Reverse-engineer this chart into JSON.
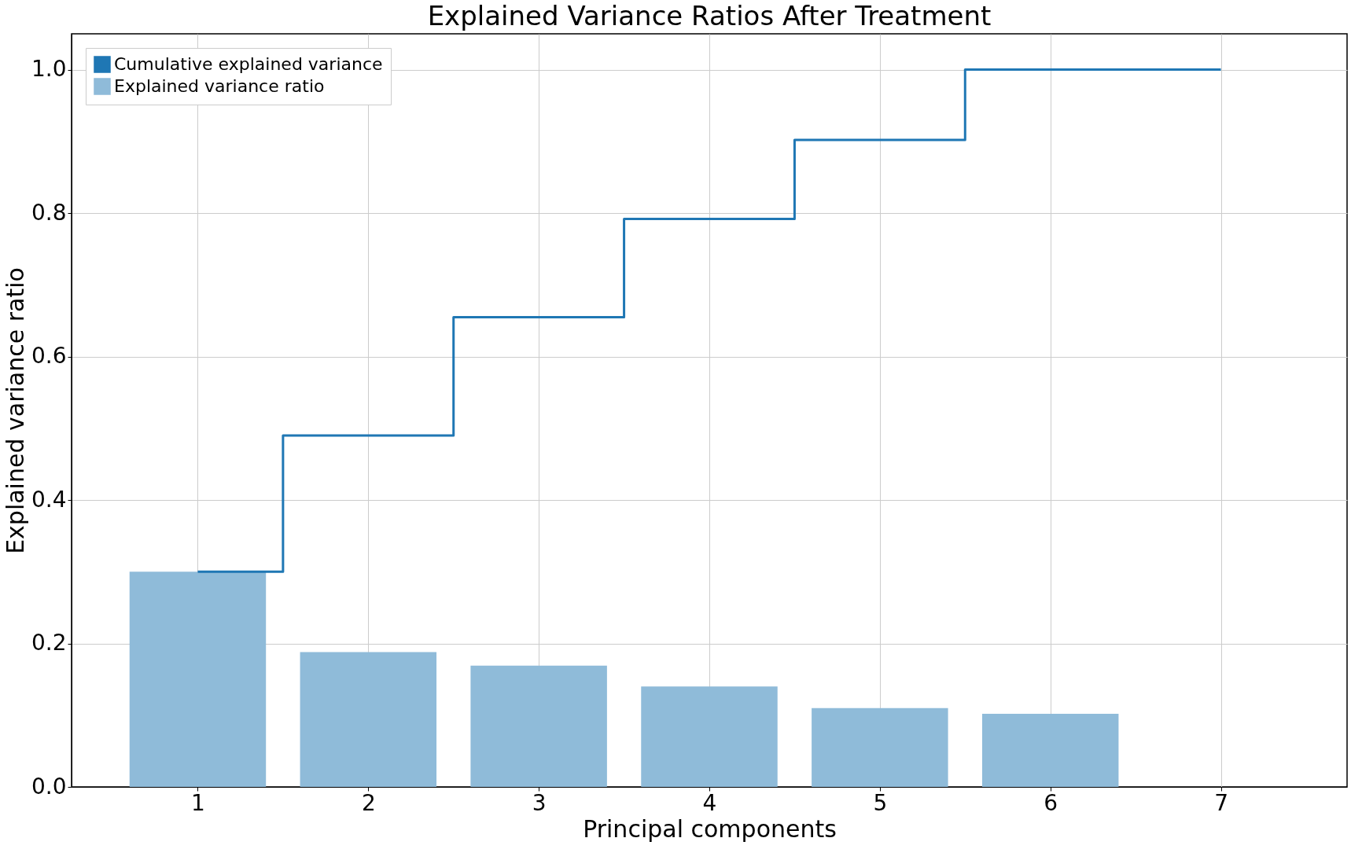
{
  "chart_data": {
    "type": "bar",
    "title": "Explained Variance Ratios After Treatment",
    "xlabel": "Principal components",
    "ylabel": "Explained variance ratio",
    "x": [
      1,
      2,
      3,
      4,
      5,
      6,
      7
    ],
    "series": [
      {
        "name": "Cumulative explained variance",
        "type": "step",
        "color": "#1f77b4",
        "values": [
          0.3,
          0.49,
          0.655,
          0.792,
          0.902,
          1.0,
          1.0
        ]
      },
      {
        "name": "Explained variance ratio",
        "color": "#8fbbd9",
        "values": [
          0.3,
          0.188,
          0.169,
          0.14,
          0.11,
          0.102,
          0.0
        ]
      }
    ],
    "xlim": [
      0.26,
      7.74
    ],
    "xticks": [
      1,
      2,
      3,
      4,
      5,
      6,
      7
    ],
    "ylim": [
      0,
      1.05
    ],
    "yticks": [
      {
        "value": 0,
        "label": "0.0"
      },
      0.2,
      0.4,
      0.6,
      0.8,
      {
        "value": 1,
        "label": "1.0"
      }
    ],
    "grid": true,
    "legend": "top left"
  }
}
